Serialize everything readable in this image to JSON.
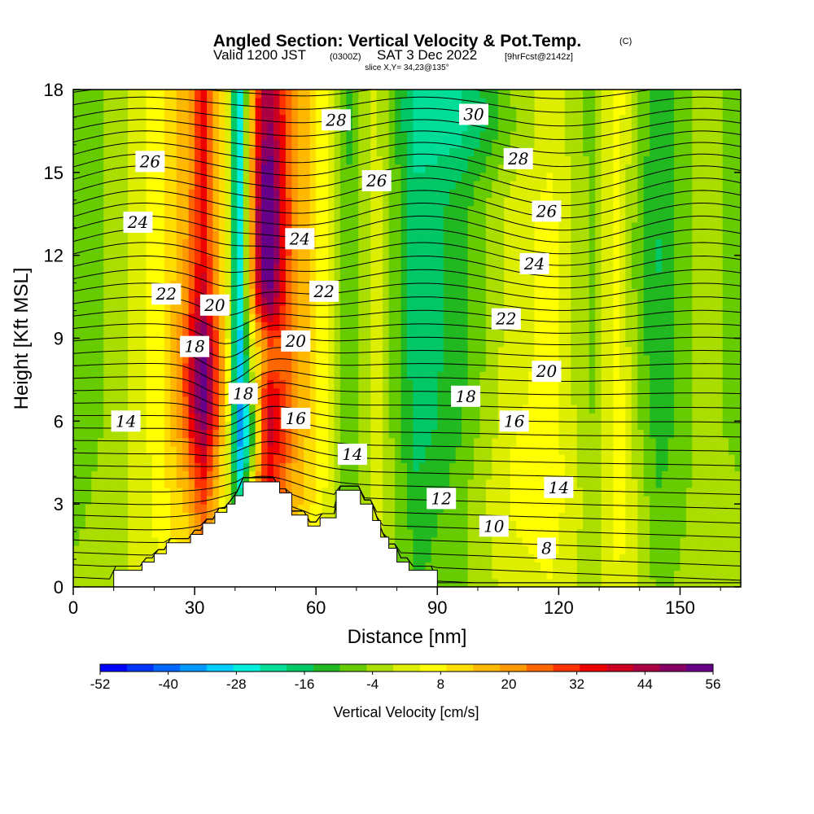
{
  "header": {
    "title": "Angled Section: Vertical Velocity & Pot.Temp.",
    "title_suffix": "(C)",
    "valid_prefix": "Valid 1200 JST",
    "valid_zone": "(0300Z)",
    "valid_date": "SAT 3 Dec 2022",
    "forecast": "[9hrFcst@2142z]",
    "slice": "slice X,Y= 34,23@135°"
  },
  "colorbar": {
    "label": "Vertical Velocity [cm/s]",
    "tick_labels": [
      "-52",
      "-40",
      "-28",
      "-16",
      "-4",
      "8",
      "20",
      "32",
      "44",
      "56"
    ],
    "colors": [
      "#0000ff",
      "#0033ff",
      "#0066ff",
      "#0099ff",
      "#00ccff",
      "#00eedd",
      "#00dd99",
      "#00c866",
      "#22b822",
      "#66cc00",
      "#aadd00",
      "#ddee00",
      "#ffff00",
      "#ffdd00",
      "#ffb800",
      "#ff9900",
      "#ff6600",
      "#ff3300",
      "#ee0000",
      "#cc0022",
      "#aa0044",
      "#880066",
      "#660088"
    ]
  },
  "chart_data": {
    "type": "heatmap",
    "xlabel": "Distance [nm]",
    "ylabel": "Height [Kft MSL]",
    "xlim": [
      0,
      165
    ],
    "ylim": [
      0,
      18
    ],
    "x_ticks": [
      "0",
      "30",
      "60",
      "90",
      "120",
      "150"
    ],
    "y_ticks": [
      "0",
      "3",
      "6",
      "9",
      "12",
      "15",
      "18"
    ],
    "x_tick_values": [
      0,
      30,
      60,
      90,
      120,
      150
    ],
    "y_tick_values": [
      0,
      3,
      6,
      9,
      12,
      15,
      18
    ],
    "field_description_x": [
      0,
      15,
      25,
      30,
      35,
      40,
      45,
      50,
      55,
      60,
      65,
      70,
      75,
      80,
      90,
      100,
      110,
      120,
      130,
      140,
      150,
      165
    ],
    "vertical_velocity_columns": [
      {
        "x": 0,
        "w": -8
      },
      {
        "x": 10,
        "w": -4
      },
      {
        "x": 20,
        "w": 6
      },
      {
        "x": 28,
        "w": 18
      },
      {
        "x": 32,
        "w": 34
      },
      {
        "x": 38,
        "w": 4
      },
      {
        "x": 41,
        "w": -30
      },
      {
        "x": 45,
        "w": 26
      },
      {
        "x": 48,
        "w": 44
      },
      {
        "x": 55,
        "w": 20
      },
      {
        "x": 62,
        "w": 6
      },
      {
        "x": 68,
        "w": -10
      },
      {
        "x": 75,
        "w": 2
      },
      {
        "x": 85,
        "w": -18
      },
      {
        "x": 95,
        "w": -12
      },
      {
        "x": 108,
        "w": 2
      },
      {
        "x": 118,
        "w": 6
      },
      {
        "x": 128,
        "w": -6
      },
      {
        "x": 135,
        "w": 8
      },
      {
        "x": 145,
        "w": -12
      },
      {
        "x": 155,
        "w": -4
      },
      {
        "x": 165,
        "w": -6
      }
    ],
    "terrain": [
      [
        0,
        0
      ],
      [
        10,
        0
      ],
      [
        10,
        0.6
      ],
      [
        17,
        0.6
      ],
      [
        17,
        0.9
      ],
      [
        20,
        0.9
      ],
      [
        20,
        1.2
      ],
      [
        23,
        1.2
      ],
      [
        23,
        1.6
      ],
      [
        29,
        1.6
      ],
      [
        29,
        1.9
      ],
      [
        32,
        1.9
      ],
      [
        32,
        2.3
      ],
      [
        35,
        2.3
      ],
      [
        35,
        2.7
      ],
      [
        38,
        2.7
      ],
      [
        38,
        3.0
      ],
      [
        40,
        3.0
      ],
      [
        40,
        3.3
      ],
      [
        42,
        3.3
      ],
      [
        42,
        3.8
      ],
      [
        51,
        3.8
      ],
      [
        51,
        3.4
      ],
      [
        54,
        3.4
      ],
      [
        54,
        2.6
      ],
      [
        58,
        2.6
      ],
      [
        58,
        2.2
      ],
      [
        61,
        2.2
      ],
      [
        61,
        2.5
      ],
      [
        65,
        2.5
      ],
      [
        65,
        3.5
      ],
      [
        71,
        3.5
      ],
      [
        71,
        3.0
      ],
      [
        74,
        3.0
      ],
      [
        74,
        2.4
      ],
      [
        76,
        2.4
      ],
      [
        76,
        1.8
      ],
      [
        78,
        1.8
      ],
      [
        78,
        1.4
      ],
      [
        80,
        1.4
      ],
      [
        80,
        0.9
      ],
      [
        83,
        0.9
      ],
      [
        83,
        0.6
      ],
      [
        90,
        0.6
      ],
      [
        90,
        0
      ],
      [
        165,
        0
      ]
    ],
    "contour_labels": [
      {
        "text": "8",
        "x": 117,
        "y": 1.4
      },
      {
        "text": "10",
        "x": 104,
        "y": 2.2
      },
      {
        "text": "12",
        "x": 91,
        "y": 3.2
      },
      {
        "text": "14",
        "x": 69,
        "y": 4.8
      },
      {
        "text": "14",
        "x": 120,
        "y": 3.6
      },
      {
        "text": "14",
        "x": 13,
        "y": 6.0
      },
      {
        "text": "16",
        "x": 55,
        "y": 6.1
      },
      {
        "text": "16",
        "x": 109,
        "y": 6.0
      },
      {
        "text": "18",
        "x": 42,
        "y": 7.0
      },
      {
        "text": "18",
        "x": 97,
        "y": 6.9
      },
      {
        "text": "18",
        "x": 30,
        "y": 8.7
      },
      {
        "text": "20",
        "x": 35,
        "y": 10.2
      },
      {
        "text": "20",
        "x": 55,
        "y": 8.9
      },
      {
        "text": "20",
        "x": 117,
        "y": 7.8
      },
      {
        "text": "22",
        "x": 23,
        "y": 10.6
      },
      {
        "text": "22",
        "x": 62,
        "y": 10.7
      },
      {
        "text": "22",
        "x": 107,
        "y": 9.7
      },
      {
        "text": "24",
        "x": 16,
        "y": 13.2
      },
      {
        "text": "24",
        "x": 56,
        "y": 12.6
      },
      {
        "text": "24",
        "x": 114,
        "y": 11.7
      },
      {
        "text": "26",
        "x": 19,
        "y": 15.4
      },
      {
        "text": "26",
        "x": 75,
        "y": 14.7
      },
      {
        "text": "26",
        "x": 117,
        "y": 13.6
      },
      {
        "text": "28",
        "x": 65,
        "y": 16.9
      },
      {
        "text": "28",
        "x": 110,
        "y": 15.5
      },
      {
        "text": "30",
        "x": 99,
        "y": 17.1
      }
    ],
    "grid": false,
    "legend": "bottom"
  }
}
